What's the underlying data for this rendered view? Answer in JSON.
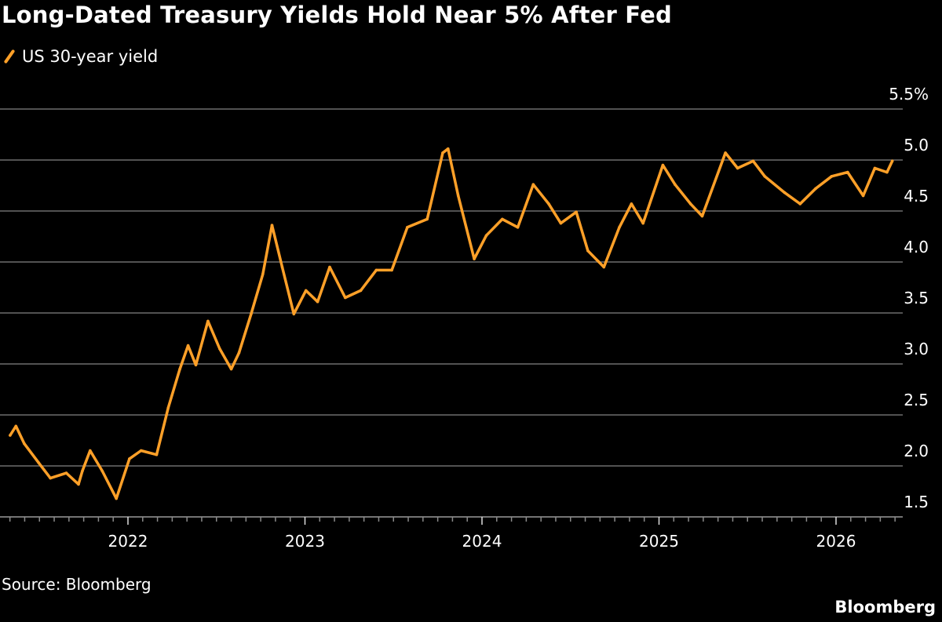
{
  "chart_data": {
    "type": "line",
    "title": "Long-Dated Treasury Yields Hold Near 5% After Fed",
    "source": "Source: Bloomberg",
    "brand": "Bloomberg",
    "legend_position": "top-left",
    "grid": true,
    "ylim": [
      1.5,
      5.5
    ],
    "y_ticks": [
      "5.5%",
      "5.0",
      "4.5",
      "4.0",
      "3.5",
      "3.0",
      "2.5",
      "2.0",
      "1.5"
    ],
    "y_tick_values": [
      5.5,
      5.0,
      4.5,
      4.0,
      3.5,
      3.0,
      2.5,
      2.0,
      1.5
    ],
    "x_ticks": [
      "2022",
      "2023",
      "2024",
      "2025",
      "2026"
    ],
    "series": [
      {
        "name": "US 30-year yield",
        "color": "#ffa028",
        "x": [
          "2021-05-03",
          "2021-05-15",
          "2021-06-01",
          "2021-07-01",
          "2021-07-25",
          "2021-08-27",
          "2021-09-21",
          "2021-09-29",
          "2021-10-15",
          "2021-11-09",
          "2021-12-08",
          "2022-01-04",
          "2022-01-28",
          "2022-03-01",
          "2022-03-25",
          "2022-04-18",
          "2022-05-05",
          "2022-05-21",
          "2022-06-15",
          "2022-07-09",
          "2022-08-02",
          "2022-08-18",
          "2022-09-12",
          "2022-10-06",
          "2022-10-25",
          "2022-11-15",
          "2022-12-09",
          "2023-01-03",
          "2023-01-27",
          "2023-02-21",
          "2023-03-25",
          "2023-04-26",
          "2023-05-28",
          "2023-06-29",
          "2023-07-31",
          "2023-09-10",
          "2023-10-12",
          "2023-10-23",
          "2023-11-13",
          "2023-12-16",
          "2024-01-10",
          "2024-02-12",
          "2024-03-15",
          "2024-04-16",
          "2024-05-18",
          "2024-06-12",
          "2024-07-14",
          "2024-08-07",
          "2024-09-09",
          "2024-10-11",
          "2024-11-05",
          "2024-11-29",
          "2025-01-09",
          "2025-02-03",
          "2025-03-07",
          "2025-03-31",
          "2025-05-18",
          "2025-06-12",
          "2025-07-14",
          "2025-08-07",
          "2025-09-17",
          "2025-10-19",
          "2025-11-20",
          "2025-12-23",
          "2026-01-25",
          "2026-02-26",
          "2026-03-22",
          "2026-04-16",
          "2026-04-27"
        ],
        "values": [
          2.3,
          2.39,
          2.22,
          2.03,
          1.88,
          1.93,
          1.82,
          1.95,
          2.15,
          1.95,
          1.68,
          2.07,
          2.15,
          2.11,
          2.57,
          2.95,
          3.18,
          2.99,
          3.42,
          3.15,
          2.95,
          3.11,
          3.49,
          3.88,
          4.36,
          3.95,
          3.49,
          3.72,
          3.61,
          3.95,
          3.65,
          3.72,
          3.92,
          3.92,
          4.34,
          4.42,
          5.07,
          5.11,
          4.65,
          4.03,
          4.26,
          4.42,
          4.34,
          4.76,
          4.57,
          4.38,
          4.49,
          4.11,
          3.95,
          4.34,
          4.57,
          4.38,
          4.95,
          4.76,
          4.57,
          4.45,
          5.07,
          4.92,
          4.99,
          4.84,
          4.68,
          4.57,
          4.72,
          4.84,
          4.88,
          4.65,
          4.92,
          4.88,
          4.99
        ]
      }
    ]
  }
}
